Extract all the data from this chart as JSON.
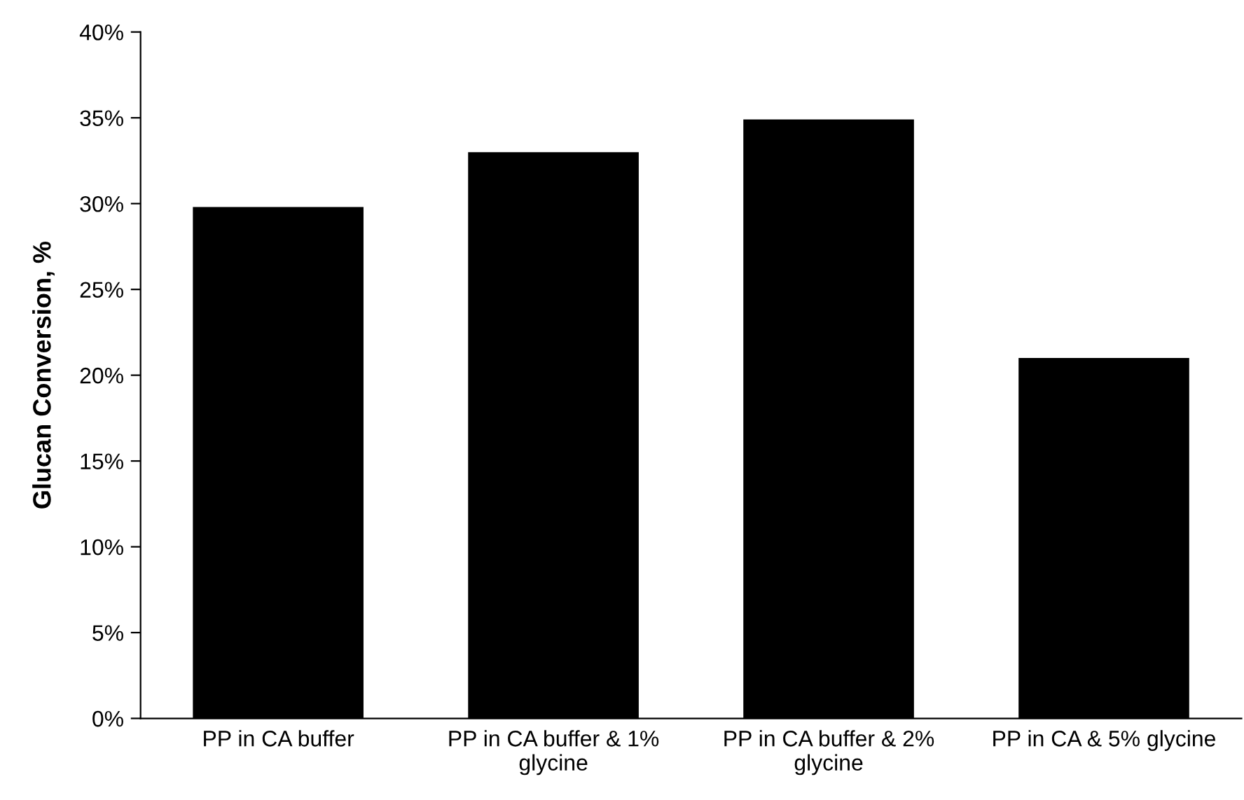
{
  "chart_data": {
    "type": "bar",
    "ylabel": "Glucan Conversion, %",
    "categories": [
      "PP in CA buffer",
      "PP in CA buffer & 1% glycine",
      "PP in CA buffer & 2% glycine",
      "PP in CA & 5% glycine"
    ],
    "values": [
      29.8,
      33.0,
      34.9,
      21.0
    ],
    "color": "#000000",
    "ylim": [
      0,
      40
    ],
    "yticks": [
      {
        "value": 0,
        "label": "0%"
      },
      {
        "value": 5,
        "label": "5%"
      },
      {
        "value": 10,
        "label": "10%"
      },
      {
        "value": 15,
        "label": "15%"
      },
      {
        "value": 20,
        "label": "20%"
      },
      {
        "value": 25,
        "label": "25%"
      },
      {
        "value": 30,
        "label": "30%"
      },
      {
        "value": 35,
        "label": "35%"
      },
      {
        "value": 40,
        "label": "40%"
      }
    ],
    "grid": false,
    "legend": false
  }
}
